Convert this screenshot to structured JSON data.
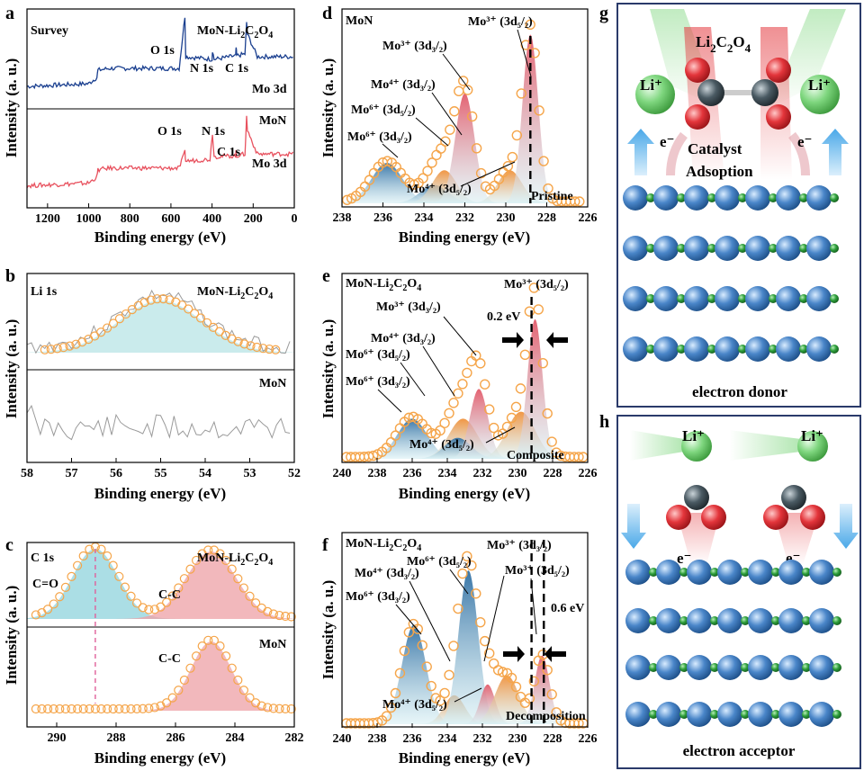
{
  "colors": {
    "blue_trace": "#1a3f8f",
    "red_trace": "#e8525f",
    "gray_trace": "#9a9a9a",
    "circle_stroke": "#f5a54a",
    "peak_blue": "#2f6fa3",
    "peak_red": "#e25a6a",
    "peak_orange": "#f0913a",
    "li_sphere": "#7ed67e",
    "o_sphere": "#e3353b",
    "c_sphere": "#4a5a63",
    "mo_sphere": "#4a86c9",
    "n_sphere": "#2e9e3b",
    "panel_border": "#2a3a6a"
  },
  "panels": {
    "a": {
      "letter": "a",
      "top_label": "Survey",
      "top_sample": "MoN-Li₂C₂O₄",
      "bottom_sample": "MoN",
      "peaks_top": [
        "O 1s",
        "N 1s",
        "C 1s",
        "Mo 3d"
      ],
      "peaks_bottom": [
        "O 1s",
        "N 1s",
        "C 1s",
        "Mo 3d"
      ]
    },
    "b": {
      "letter": "b",
      "label": "Li 1s",
      "top_sample": "MoN-Li₂C₂O₄",
      "bottom_sample": "MoN"
    },
    "c": {
      "letter": "c",
      "label": "C 1s",
      "top_sample": "MoN-Li₂C₂O₄",
      "bottom_sample": "MoN",
      "top_peaks": [
        "C=O",
        "C-C"
      ],
      "bottom_peaks": [
        "C-C"
      ]
    },
    "d": {
      "letter": "d",
      "sample": "MoN",
      "state": "Pristine",
      "labels": [
        "Mo³⁺ (3d₅/₂)",
        "Mo³⁺ (3d₃/₂)",
        "Mo⁴⁺ (3d₃/₂)",
        "Mo⁶⁺ (3d₅/₂)",
        "Mo⁶⁺ (3d₃/₂)",
        "Mo⁴⁺ (3d₅/₂)"
      ]
    },
    "e": {
      "letter": "e",
      "sample": "MoN-Li₂C₂O₄",
      "state": "Composite",
      "shift": "0.2 eV",
      "labels": [
        "Mo³⁺ (3d₅/₂)",
        "Mo³⁺ (3d₃/₂)",
        "Mo⁴⁺ (3d₃/₂)",
        "Mo⁶⁺ (3d₅/₂)",
        "Mo⁶⁺ (3d₃/₂)",
        "Mo⁴⁺ (3d₅/₂)"
      ]
    },
    "f": {
      "letter": "f",
      "sample": "MoN-Li₂C₂O₄",
      "state": "Decomposition",
      "shift": "0.6 eV",
      "labels": [
        "Mo⁶⁺ (3d₅/₂)",
        "Mo⁴⁺ (3d₃/₂)",
        "Mo⁶⁺ (3d₃/₂)",
        "Mo³⁺ (3d₃/₂)",
        "Mo³⁺ (3d₅/₂)",
        "Mo⁴⁺ (3d₅/₂)"
      ]
    },
    "g": {
      "letter": "g",
      "molecule": "Li₂C₂O₄",
      "li": "Li⁺",
      "electron": "e⁻",
      "process": [
        "Catalyst",
        "Adsoption"
      ],
      "caption": "electron donor"
    },
    "h": {
      "letter": "h",
      "li": "Li⁺",
      "electron": "e⁻",
      "caption": "electron acceptor"
    }
  },
  "chart_data": [
    {
      "id": "a",
      "type": "line",
      "xlabel": "Binding energy (eV)",
      "ylabel": "Intensity (a. u.)",
      "xlim": [
        1300,
        0
      ],
      "xticks": [
        1200,
        1000,
        800,
        600,
        400,
        200,
        0
      ],
      "series": [
        {
          "name": "MoN-Li₂C₂O₄",
          "points": [
            [
              1300,
              0.22
            ],
            [
              1000,
              0.25
            ],
            [
              960,
              0.32
            ],
            [
              955,
              0.4
            ],
            [
              900,
              0.42
            ],
            [
              700,
              0.42
            ],
            [
              560,
              0.42
            ],
            [
              532,
              1.0
            ],
            [
              528,
              0.55
            ],
            [
              400,
              0.52
            ],
            [
              398,
              0.62
            ],
            [
              390,
              0.52
            ],
            [
              285,
              0.56
            ],
            [
              283,
              0.65
            ],
            [
              280,
              0.56
            ],
            [
              240,
              0.58
            ],
            [
              232,
              0.92
            ],
            [
              228,
              0.8
            ],
            [
              180,
              0.55
            ],
            [
              50,
              0.55
            ],
            [
              0,
              0.55
            ]
          ]
        },
        {
          "name": "MoN",
          "points": [
            [
              1300,
              0.22
            ],
            [
              1000,
              0.25
            ],
            [
              960,
              0.32
            ],
            [
              955,
              0.4
            ],
            [
              900,
              0.42
            ],
            [
              700,
              0.42
            ],
            [
              560,
              0.42
            ],
            [
              532,
              0.6
            ],
            [
              528,
              0.5
            ],
            [
              410,
              0.52
            ],
            [
              398,
              0.82
            ],
            [
              390,
              0.55
            ],
            [
              285,
              0.56
            ],
            [
              283,
              0.62
            ],
            [
              280,
              0.56
            ],
            [
              240,
              0.58
            ],
            [
              232,
              1.0
            ],
            [
              228,
              0.85
            ],
            [
              180,
              0.58
            ],
            [
              50,
              0.58
            ],
            [
              0,
              0.58
            ]
          ]
        }
      ]
    },
    {
      "id": "b",
      "type": "line",
      "xlabel": "Binding energy (eV)",
      "ylabel": "Intensity (a. u.)",
      "xlim": [
        58,
        52
      ],
      "xticks": [
        58,
        57,
        56,
        55,
        54,
        53,
        52
      ],
      "series": [
        {
          "name": "Li 1s fit",
          "center": 55.0,
          "fwhm": 2.2
        },
        {
          "name": "MoN",
          "type": "noise"
        }
      ]
    },
    {
      "id": "c",
      "type": "line",
      "xlabel": "Binding energy (eV)",
      "ylabel": "Intensity (a. u.)",
      "xlim": [
        291,
        282
      ],
      "xticks": [
        290,
        288,
        286,
        284,
        282
      ],
      "series": [
        {
          "name": "C=O",
          "center": 288.7,
          "fwhm": 1.8
        },
        {
          "name": "C-C (MoN-Li₂C₂O₄)",
          "center": 284.8,
          "fwhm": 2.0
        },
        {
          "name": "C-C (MoN)",
          "center": 284.8,
          "fwhm": 1.6
        }
      ]
    },
    {
      "id": "d",
      "type": "area",
      "xlabel": "Binding energy (eV)",
      "ylabel": "Intensity (a. u.)",
      "xlim": [
        238,
        226
      ],
      "xticks": [
        238,
        236,
        234,
        232,
        230,
        228,
        226
      ],
      "series": [
        {
          "name": "Mo⁶⁺ (3d₃/₂)",
          "center": 235.8,
          "height": 0.22,
          "fwhm": 1.8
        },
        {
          "name": "Mo⁶⁺ (3d₅/₂)",
          "center": 233.5,
          "height": 0.1,
          "fwhm": 1.6
        },
        {
          "name": "Mo⁴⁺ (3d₃/₂)",
          "center": 233.0,
          "height": 0.18,
          "fwhm": 1.4
        },
        {
          "name": "Mo³⁺ (3d₃/₂)",
          "center": 232.0,
          "height": 0.6,
          "fwhm": 1.1
        },
        {
          "name": "Mo⁴⁺ (3d₅/₂)",
          "center": 229.8,
          "height": 0.18,
          "fwhm": 1.4
        },
        {
          "name": "Mo³⁺ (3d₅/₂)",
          "center": 228.8,
          "height": 0.92,
          "fwhm": 0.9
        }
      ]
    },
    {
      "id": "e",
      "type": "area",
      "xlabel": "Binding energy (eV)",
      "ylabel": "Intensity (a. u.)",
      "xlim": [
        240,
        226
      ],
      "xticks": [
        240,
        238,
        236,
        234,
        232,
        230,
        228,
        226
      ],
      "series": [
        {
          "name": "Mo⁶⁺ (3d₃/₂)",
          "center": 236.0,
          "height": 0.23,
          "fwhm": 2.0
        },
        {
          "name": "Mo⁴⁺ (3d₃/₂)",
          "center": 233.1,
          "height": 0.23,
          "fwhm": 1.9
        },
        {
          "name": "Mo⁶⁺ (3d₅/₂)",
          "center": 233.4,
          "height": 0.12,
          "fwhm": 1.8
        },
        {
          "name": "Mo³⁺ (3d₃/₂)",
          "center": 232.2,
          "height": 0.4,
          "fwhm": 1.2
        },
        {
          "name": "Mo⁴⁺ (3d₅/₂)",
          "center": 229.8,
          "height": 0.27,
          "fwhm": 1.9
        },
        {
          "name": "Mo³⁺ (3d₅/₂)",
          "center": 229.0,
          "height": 0.8,
          "fwhm": 1.0
        }
      ]
    },
    {
      "id": "f",
      "type": "area",
      "xlabel": "Binding energy (eV)",
      "ylabel": "Intensity (a. u.)",
      "xlim": [
        240,
        226
      ],
      "xticks": [
        240,
        238,
        236,
        234,
        232,
        230,
        228,
        226
      ],
      "series": [
        {
          "name": "Mo⁶⁺ (3d₃/₂)",
          "center": 235.9,
          "height": 0.55,
          "fwhm": 1.6
        },
        {
          "name": "Mo⁴⁺ (3d₃/₂)",
          "center": 233.6,
          "height": 0.16,
          "fwhm": 1.4
        },
        {
          "name": "Mo⁶⁺ (3d₅/₂)",
          "center": 232.8,
          "height": 0.85,
          "fwhm": 1.3
        },
        {
          "name": "Mo³⁺ (3d₃/₂)",
          "center": 231.7,
          "height": 0.22,
          "fwhm": 1.0
        },
        {
          "name": "Mo⁴⁺ (3d₅/₂)",
          "center": 230.6,
          "height": 0.27,
          "fwhm": 1.6
        },
        {
          "name": "Mo³⁺ (3d₅/₂)",
          "center": 228.6,
          "height": 0.38,
          "fwhm": 1.0
        }
      ]
    }
  ]
}
